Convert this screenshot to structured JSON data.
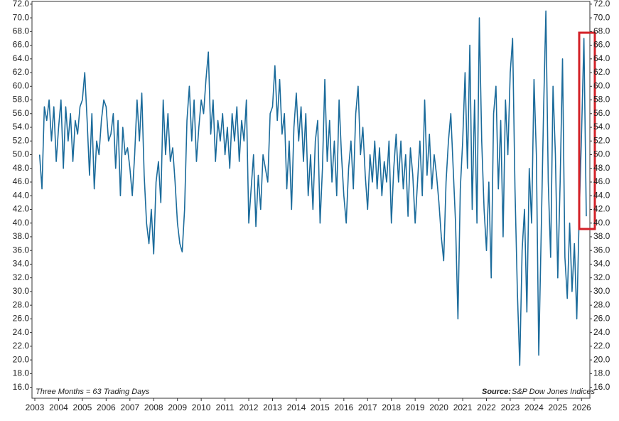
{
  "chart_data": {
    "type": "line",
    "annotation": "Three Months = 63 Trading Days",
    "source_label": "Source:",
    "source": "S&P Dow Jones Indices",
    "xlim": [
      2002.88,
      2026.35
    ],
    "xticks": [
      2003,
      2004,
      2005,
      2006,
      2007,
      2008,
      2009,
      2010,
      2011,
      2012,
      2013,
      2014,
      2015,
      2016,
      2017,
      2018,
      2019,
      2020,
      2021,
      2022,
      2023,
      2024,
      2025,
      2026
    ],
    "ylim": [
      14.4,
      72.4
    ],
    "yticks": [
      {
        "value": 16,
        "label": "16.0"
      },
      {
        "value": 18,
        "label": "18.0"
      },
      {
        "value": 20,
        "label": "20.0"
      },
      {
        "value": 22,
        "label": "22.0"
      },
      {
        "value": 24,
        "label": "24.0"
      },
      {
        "value": 26,
        "label": "26.0"
      },
      {
        "value": 28,
        "label": "28.0"
      },
      {
        "value": 30,
        "label": "30.0"
      },
      {
        "value": 32,
        "label": "32.0"
      },
      {
        "value": 34,
        "label": "34.0"
      },
      {
        "value": 36,
        "label": "36.0"
      },
      {
        "value": 38,
        "label": "38.0"
      },
      {
        "value": 40,
        "label": "40.0"
      },
      {
        "value": 42,
        "label": "42.0"
      },
      {
        "value": 44,
        "label": "44.0"
      },
      {
        "value": 46,
        "label": "46.0"
      },
      {
        "value": 48,
        "label": "48.0"
      },
      {
        "value": 50,
        "label": "50.0"
      },
      {
        "value": 52,
        "label": "52.0"
      },
      {
        "value": 54,
        "label": "54.0"
      },
      {
        "value": 56,
        "label": "56.0"
      },
      {
        "value": 58,
        "label": "58.0"
      },
      {
        "value": 60,
        "label": "60.0"
      },
      {
        "value": 62,
        "label": "62.0"
      },
      {
        "value": 64,
        "label": "64.0"
      },
      {
        "value": 66,
        "label": "66.0"
      },
      {
        "value": 68,
        "label": "68.0"
      },
      {
        "value": 70,
        "label": "70.0"
      },
      {
        "value": 72,
        "label": "72.0"
      }
    ],
    "y2lim": [
      14.4,
      72.4
    ],
    "y2ticks": [
      {
        "value": 16,
        "label": "16.0"
      },
      {
        "value": 18,
        "label": "18.0"
      },
      {
        "value": 20,
        "label": "20.0"
      },
      {
        "value": 22,
        "label": "22.0"
      },
      {
        "value": 24,
        "label": "24.0"
      },
      {
        "value": 26,
        "label": "26.0"
      },
      {
        "value": 28,
        "label": "28.0"
      },
      {
        "value": 30,
        "label": "30.0"
      },
      {
        "value": 32,
        "label": "32.0"
      },
      {
        "value": 34,
        "label": "34.0"
      },
      {
        "value": 36,
        "label": "36.0"
      },
      {
        "value": 38,
        "label": "38.0"
      },
      {
        "value": 40,
        "label": "40.0"
      },
      {
        "value": 42,
        "label": "42.0"
      },
      {
        "value": 44,
        "label": "44.0"
      },
      {
        "value": 46,
        "label": "46.0"
      },
      {
        "value": 48,
        "label": "48.0"
      },
      {
        "value": 50,
        "label": "50.0"
      },
      {
        "value": 52,
        "label": "52.0"
      },
      {
        "value": 54,
        "label": "54.0"
      },
      {
        "value": 56,
        "label": "56.0"
      },
      {
        "value": 58,
        "label": "58.0"
      },
      {
        "value": 60,
        "label": "60.0"
      },
      {
        "value": 62,
        "label": "62.0"
      },
      {
        "value": 64,
        "label": "64.0"
      },
      {
        "value": 66,
        "label": "66.0"
      },
      {
        "value": 68,
        "label": "68.0"
      },
      {
        "value": 70,
        "label": "70.0"
      },
      {
        "value": 72,
        "label": "72.0"
      }
    ],
    "x": [
      2003.2,
      2003.3,
      2003.4,
      2003.5,
      2003.6,
      2003.7,
      2003.8,
      2003.9,
      2004.0,
      2004.1,
      2004.2,
      2004.3,
      2004.4,
      2004.5,
      2004.6,
      2004.7,
      2004.8,
      2004.9,
      2005.0,
      2005.1,
      2005.2,
      2005.3,
      2005.4,
      2005.5,
      2005.6,
      2005.7,
      2005.8,
      2005.9,
      2006.0,
      2006.1,
      2006.2,
      2006.3,
      2006.4,
      2006.5,
      2006.6,
      2006.7,
      2006.8,
      2006.9,
      2007.0,
      2007.1,
      2007.2,
      2007.3,
      2007.4,
      2007.5,
      2007.6,
      2007.7,
      2007.8,
      2007.9,
      2008.0,
      2008.1,
      2008.2,
      2008.3,
      2008.4,
      2008.5,
      2008.6,
      2008.7,
      2008.8,
      2008.9,
      2009.0,
      2009.1,
      2009.2,
      2009.3,
      2009.4,
      2009.5,
      2009.6,
      2009.7,
      2009.8,
      2009.9,
      2010.0,
      2010.1,
      2010.2,
      2010.3,
      2010.4,
      2010.5,
      2010.6,
      2010.7,
      2010.8,
      2010.9,
      2011.0,
      2011.1,
      2011.2,
      2011.3,
      2011.4,
      2011.5,
      2011.6,
      2011.7,
      2011.8,
      2011.9,
      2012.0,
      2012.1,
      2012.2,
      2012.3,
      2012.4,
      2012.5,
      2012.6,
      2012.7,
      2012.8,
      2012.9,
      2013.0,
      2013.1,
      2013.2,
      2013.3,
      2013.4,
      2013.5,
      2013.6,
      2013.7,
      2013.8,
      2013.9,
      2014.0,
      2014.1,
      2014.2,
      2014.3,
      2014.4,
      2014.5,
      2014.6,
      2014.7,
      2014.8,
      2014.9,
      2015.0,
      2015.1,
      2015.2,
      2015.3,
      2015.4,
      2015.5,
      2015.6,
      2015.7,
      2015.8,
      2015.9,
      2016.0,
      2016.1,
      2016.2,
      2016.3,
      2016.4,
      2016.5,
      2016.6,
      2016.7,
      2016.8,
      2016.9,
      2017.0,
      2017.1,
      2017.2,
      2017.3,
      2017.4,
      2017.5,
      2017.6,
      2017.7,
      2017.8,
      2017.9,
      2018.0,
      2018.1,
      2018.2,
      2018.3,
      2018.4,
      2018.5,
      2018.6,
      2018.7,
      2018.8,
      2018.9,
      2019.0,
      2019.1,
      2019.2,
      2019.3,
      2019.4,
      2019.5,
      2019.6,
      2019.7,
      2019.8,
      2019.9,
      2020.0,
      2020.1,
      2020.2,
      2020.3,
      2020.4,
      2020.5,
      2020.6,
      2020.7,
      2020.8,
      2020.9,
      2021.0,
      2021.1,
      2021.2,
      2021.3,
      2021.4,
      2021.5,
      2021.6,
      2021.7,
      2021.8,
      2021.9,
      2022.0,
      2022.1,
      2022.2,
      2022.3,
      2022.4,
      2022.5,
      2022.6,
      2022.7,
      2022.8,
      2022.9,
      2023.0,
      2023.1,
      2023.2,
      2023.3,
      2023.4,
      2023.5,
      2023.6,
      2023.7,
      2023.8,
      2023.9,
      2024.0,
      2024.1,
      2024.2,
      2024.3,
      2024.4,
      2024.5,
      2024.6,
      2024.7,
      2024.8,
      2024.9,
      2025.0,
      2025.1,
      2025.2,
      2025.3,
      2025.4,
      2025.5,
      2025.6,
      2025.7,
      2025.8,
      2025.9,
      2026.0,
      2026.1,
      2026.2
    ],
    "series": [
      {
        "color": "#1b6b9b",
        "values": [
          50,
          45,
          57,
          55,
          58,
          52,
          57,
          49,
          54,
          58,
          48,
          57,
          52,
          56,
          49,
          55,
          53,
          57,
          58,
          62,
          55,
          47,
          56,
          45,
          52,
          50,
          55,
          58,
          57,
          52,
          53,
          56,
          48,
          55,
          44,
          54,
          50,
          51,
          48,
          44,
          50,
          58,
          52,
          59,
          47,
          40,
          37,
          42,
          35.5,
          46,
          49,
          43,
          58,
          50,
          56,
          49,
          51,
          46,
          40,
          37,
          35.8,
          42,
          55,
          60,
          52,
          58,
          49,
          54,
          58,
          56,
          61,
          65,
          53,
          58,
          49,
          55,
          52,
          56,
          50,
          54,
          48,
          56,
          52,
          57,
          49,
          55,
          52,
          58,
          40,
          45,
          50,
          39.5,
          47,
          42,
          50,
          48,
          46,
          56,
          57,
          63,
          55,
          61,
          53,
          56,
          45,
          52,
          42,
          54,
          59,
          52,
          57,
          49,
          56,
          44,
          50,
          42,
          52,
          55,
          40,
          48,
          61,
          49,
          55,
          46,
          52,
          44,
          58,
          50,
          44,
          40,
          48,
          52,
          45,
          56,
          60,
          50,
          54,
          47,
          42,
          50,
          46,
          52,
          45,
          51,
          44,
          49,
          46,
          52,
          40,
          48,
          53,
          46,
          52,
          45,
          50,
          41,
          51,
          47,
          40,
          46,
          52,
          44,
          58,
          47,
          53,
          45,
          50,
          47,
          43,
          38,
          34.5,
          46,
          52,
          56,
          48,
          40,
          26,
          45,
          52,
          62,
          48,
          66,
          42,
          58,
          40,
          70,
          52,
          42,
          36,
          46,
          32,
          56,
          60,
          45,
          55,
          38,
          58,
          50,
          62,
          67,
          45,
          30,
          19.2,
          36,
          42,
          27,
          48,
          40,
          61,
          50,
          20.7,
          38,
          56,
          71,
          46,
          35,
          60,
          50,
          32,
          46,
          64,
          35,
          29,
          40,
          30,
          37,
          26,
          41,
          53,
          67,
          41
        ]
      }
    ]
  }
}
